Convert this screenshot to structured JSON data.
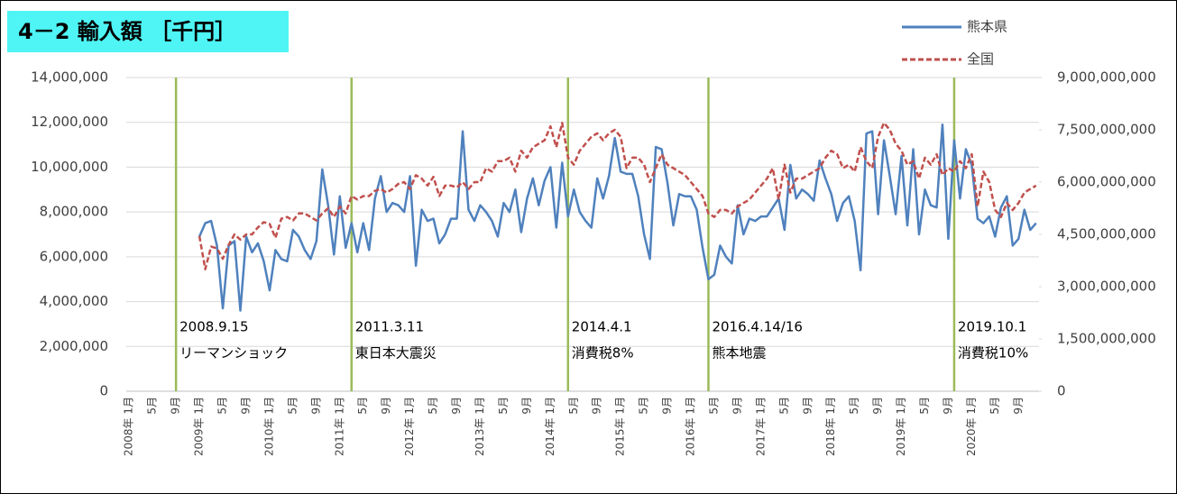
{
  "chart_data": {
    "type": "line",
    "title": "4－2 輸入額 ［千円］",
    "categories": [
      "2008年 1月",
      null,
      null,
      null,
      "5月",
      null,
      null,
      null,
      "9月",
      null,
      null,
      null,
      "2009年 1月",
      null,
      null,
      null,
      "5月",
      null,
      null,
      null,
      "9月",
      null,
      null,
      null,
      "2010年 1月",
      null,
      null,
      null,
      "5月",
      null,
      null,
      null,
      "9月",
      null,
      null,
      null,
      "2011年 1月",
      null,
      null,
      null,
      "5月",
      null,
      null,
      null,
      "9月",
      null,
      null,
      null,
      "2012年 1月",
      null,
      null,
      null,
      "5月",
      null,
      null,
      null,
      "9月",
      null,
      null,
      null,
      "2013年 1月",
      null,
      null,
      null,
      "5月",
      null,
      null,
      null,
      "9月",
      null,
      null,
      null,
      "2014年 1月",
      null,
      null,
      null,
      "5月",
      null,
      null,
      null,
      "9月",
      null,
      null,
      null,
      "2015年 1月",
      null,
      null,
      null,
      "5月",
      null,
      null,
      null,
      "9月",
      null,
      null,
      null,
      "2016年 1月",
      null,
      null,
      null,
      "5月",
      null,
      null,
      null,
      "9月",
      null,
      null,
      null,
      "2017年 1月",
      null,
      null,
      null,
      "5月",
      null,
      null,
      null,
      "9月",
      null,
      null,
      null,
      "2018年 1月",
      null,
      null,
      null,
      "5月",
      null,
      null,
      null,
      "9月",
      null,
      null,
      null,
      "2019年 1月",
      null,
      null,
      null,
      "5月",
      null,
      null,
      null,
      "9月",
      null,
      null,
      null,
      "2020年 1月",
      null,
      null,
      null,
      "5月",
      null,
      null,
      null,
      "9月",
      null,
      null,
      null
    ],
    "series": [
      {
        "name": "熊本県",
        "color": "#4f81bd",
        "dash": false,
        "values": [
          null,
          null,
          null,
          null,
          null,
          null,
          null,
          null,
          null,
          null,
          null,
          null,
          6900000,
          7500000,
          7600000,
          6500000,
          3700000,
          6500000,
          6700000,
          3600000,
          6900000,
          6200000,
          6600000,
          5800000,
          4500000,
          6300000,
          5900000,
          5800000,
          7200000,
          6900000,
          6300000,
          5900000,
          6700000,
          9900000,
          8300000,
          6100000,
          8700000,
          6400000,
          7500000,
          6200000,
          7500000,
          6300000,
          8600000,
          9600000,
          8000000,
          8400000,
          8300000,
          8000000,
          9600000,
          5600000,
          8100000,
          7600000,
          7700000,
          6600000,
          7000000,
          7700000,
          7700000,
          11600000,
          8100000,
          7600000,
          8300000,
          8000000,
          7600000,
          6900000,
          8400000,
          8000000,
          9000000,
          7100000,
          8600000,
          9500000,
          8300000,
          9400000,
          10000000,
          7300000,
          10200000,
          7800000,
          9000000,
          8000000,
          7600000,
          7300000,
          9500000,
          8600000,
          9600000,
          11300000,
          9800000,
          9700000,
          9700000,
          8700000,
          7000000,
          5900000,
          10900000,
          10800000,
          9300000,
          7400000,
          8800000,
          8700000,
          8700000,
          8100000,
          6400000,
          5000000,
          5200000,
          6500000,
          6000000,
          5700000,
          8300000,
          7000000,
          7700000,
          7600000,
          7800000,
          7800000,
          8200000,
          8600000,
          7200000,
          10100000,
          8600000,
          9000000,
          8800000,
          8500000,
          10300000,
          9500000,
          8800000,
          7600000,
          8400000,
          8700000,
          7600000,
          5400000,
          11500000,
          11600000,
          7900000,
          11200000,
          9600000,
          7900000,
          10500000,
          7400000,
          10800000,
          7000000,
          9000000,
          8300000,
          8200000,
          11900000,
          6800000,
          11200000,
          8600000,
          10800000,
          10100000,
          7700000,
          7500000,
          7800000,
          6900000,
          8200000,
          8700000,
          6500000,
          6800000,
          8100000,
          7200000,
          7500000
        ]
      },
      {
        "name": "全国",
        "color": "#c0504d",
        "dash": true,
        "axis": "y2",
        "values": [
          null,
          null,
          null,
          null,
          null,
          null,
          null,
          null,
          null,
          null,
          null,
          null,
          4450000000,
          3500000000,
          4150000000,
          4100000000,
          3800000000,
          4200000000,
          4500000000,
          4350000000,
          4500000000,
          4500000000,
          4700000000,
          4850000000,
          4800000000,
          4400000000,
          4950000000,
          5000000000,
          4900000000,
          5100000000,
          5100000000,
          5000000000,
          4900000000,
          5100000000,
          5250000000,
          5000000000,
          5300000000,
          5100000000,
          5600000000,
          5500000000,
          5600000000,
          5600000000,
          5750000000,
          5800000000,
          5700000000,
          5800000000,
          5950000000,
          6000000000,
          5800000000,
          6200000000,
          6100000000,
          5900000000,
          6150000000,
          5600000000,
          5900000000,
          5900000000,
          5850000000,
          6000000000,
          5800000000,
          6000000000,
          6000000000,
          6400000000,
          6300000000,
          6600000000,
          6600000000,
          6700000000,
          6300000000,
          6900000000,
          6700000000,
          7000000000,
          7100000000,
          7200000000,
          7600000000,
          7000000000,
          7700000000,
          6700000000,
          6500000000,
          6900000000,
          7100000000,
          7300000000,
          7400000000,
          7200000000,
          7400000000,
          7500000000,
          7300000000,
          6400000000,
          6700000000,
          6700000000,
          6500000000,
          6000000000,
          6400000000,
          6800000000,
          6500000000,
          6400000000,
          6300000000,
          6200000000,
          6000000000,
          5800000000,
          5600000000,
          5100000000,
          5000000000,
          5200000000,
          5200000000,
          5100000000,
          5300000000,
          5400000000,
          5500000000,
          5700000000,
          5900000000,
          6100000000,
          6400000000,
          5500000000,
          6500000000,
          5700000000,
          6100000000,
          6100000000,
          6200000000,
          6300000000,
          6400000000,
          6700000000,
          6900000000,
          6800000000,
          6400000000,
          6500000000,
          6300000000,
          7000000000,
          6600000000,
          6400000000,
          7300000000,
          7700000000,
          7500000000,
          7100000000,
          6900000000,
          6500000000,
          6600000000,
          6100000000,
          6700000000,
          6500000000,
          6800000000,
          6200000000,
          6400000000,
          6300000000,
          6600000000,
          6400000000,
          6800000000,
          5300000000,
          6300000000,
          6000000000,
          5200000000,
          5000000000,
          5400000000,
          5200000000,
          5400000000,
          5700000000,
          5800000000,
          5900000000
        ]
      }
    ],
    "ylim": [
      0,
      14000000
    ],
    "yticks": [
      0,
      {
        "value": 2000000,
        "label": "2,000,000"
      },
      {
        "value": 4000000,
        "label": "4,000,000"
      },
      {
        "value": 6000000,
        "label": "6,000,000"
      },
      {
        "value": 8000000,
        "label": "8,000,000"
      },
      {
        "value": 10000000,
        "label": "10,000,000"
      },
      {
        "value": 12000000,
        "label": "12,000,000"
      },
      {
        "value": 14000000,
        "label": "14,000,000"
      }
    ],
    "y2lim": [
      0,
      9000000000
    ],
    "y2ticks": [
      0,
      {
        "value": 1500000000,
        "label": "1,500,000,000"
      },
      {
        "value": 3000000000,
        "label": "3,000,000,000"
      },
      {
        "value": 4500000000,
        "label": "4,500,000,000"
      },
      {
        "value": 6000000000,
        "label": "6,000,000,000"
      },
      {
        "value": 7500000000,
        "label": "7,500,000,000"
      },
      {
        "value": 9000000000,
        "label": "9,000,000,000"
      }
    ],
    "grid": true,
    "legend": "upper right",
    "event_color": "#9bbb59",
    "events": [
      {
        "date": "2008.9.15",
        "label": "リーマンショック"
      },
      {
        "date": "2011.3.11",
        "label": "東日本大震災"
      },
      {
        "date": "2014.4.1",
        "label": "消費税8%"
      },
      {
        "date": "2016.4.14/16",
        "label": "熊本地震"
      },
      {
        "date": "2019.10.1",
        "label": "消費税10%"
      }
    ]
  }
}
